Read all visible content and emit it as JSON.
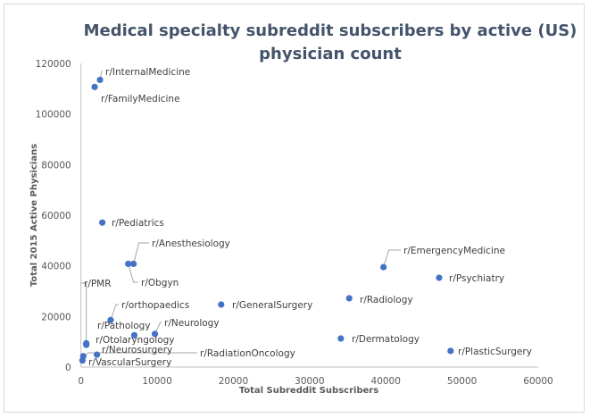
{
  "chart_data": {
    "type": "scatter",
    "title": "Medical specialty subreddit subscribers by active (US) physician count",
    "title_lines": [
      "Medical specialty subreddit subscribers by active (US)",
      "physician count"
    ],
    "xlabel": "Total Subreddit Subscribers",
    "ylabel": "Total 2015 Active Physicians",
    "xlim": [
      0,
      60000
    ],
    "ylim": [
      0,
      120000
    ],
    "xticks": [
      0,
      10000,
      20000,
      30000,
      40000,
      50000,
      60000
    ],
    "yticks": [
      0,
      20000,
      40000,
      60000,
      80000,
      100000,
      120000
    ],
    "grid": false,
    "marker_color": "#4472c4",
    "points": [
      {
        "label": "r/InternalMedicine",
        "x": 2500,
        "y": 113500
      },
      {
        "label": "r/FamilyMedicine",
        "x": 1800,
        "y": 110700
      },
      {
        "label": "r/Pediatrics",
        "x": 2800,
        "y": 57100
      },
      {
        "label": "r/Anesthesiology",
        "x": 6900,
        "y": 40800
      },
      {
        "label": "r/Obgyn",
        "x": 6200,
        "y": 40800
      },
      {
        "label": "r/EmergencyMedicine",
        "x": 39700,
        "y": 39500
      },
      {
        "label": "r/Psychiatry",
        "x": 47000,
        "y": 35300
      },
      {
        "label": "r/Radiology",
        "x": 35200,
        "y": 27200
      },
      {
        "label": "r/GeneralSurgery",
        "x": 18400,
        "y": 24700
      },
      {
        "label": "r/orthopaedics",
        "x": 3900,
        "y": 18600
      },
      {
        "label": "r/Neurology",
        "x": 9700,
        "y": 13100
      },
      {
        "label": "r/Pathology",
        "x": 7000,
        "y": 12600
      },
      {
        "label": "r/Dermatology",
        "x": 34100,
        "y": 11300
      },
      {
        "label": "r/PMR",
        "x": 700,
        "y": 8800
      },
      {
        "label": "r/Otolaryngology",
        "x": 700,
        "y": 9400
      },
      {
        "label": "r/Neurosurgery",
        "x": 2100,
        "y": 4900
      },
      {
        "label": "r/RadiationOncology",
        "x": 300,
        "y": 4300
      },
      {
        "label": "r/VascularSurgery",
        "x": 200,
        "y": 2600
      },
      {
        "label": "r/PlasticSurgery",
        "x": 48500,
        "y": 6400
      }
    ]
  }
}
